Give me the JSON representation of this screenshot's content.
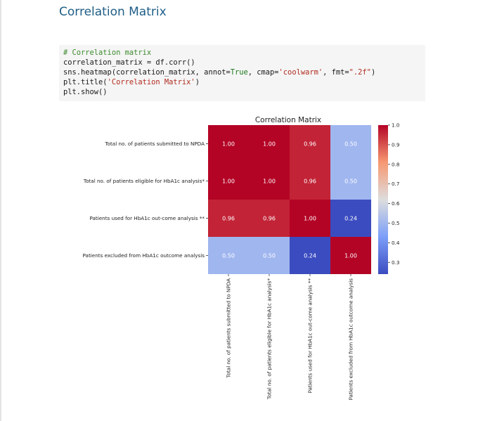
{
  "notebook": {
    "heading": "Correlation Matrix"
  },
  "code": {
    "lines": [
      [
        {
          "t": "# Correlation matrix",
          "c": "comment"
        }
      ],
      [
        {
          "t": "correlation_matrix = df.corr()",
          "c": "norm"
        }
      ],
      [
        {
          "t": "sns.heatmap(correlation_matrix, annot=",
          "c": "norm"
        },
        {
          "t": "True",
          "c": "const"
        },
        {
          "t": ", cmap=",
          "c": "norm"
        },
        {
          "t": "'coolwarm'",
          "c": "str"
        },
        {
          "t": ", fmt=",
          "c": "norm"
        },
        {
          "t": "\".2f\"",
          "c": "str"
        },
        {
          "t": ")",
          "c": "norm"
        }
      ],
      [
        {
          "t": "plt.title(",
          "c": "norm"
        },
        {
          "t": "'Correlation Matrix'",
          "c": "str"
        },
        {
          "t": ")",
          "c": "norm"
        }
      ],
      [
        {
          "t": "plt.show()",
          "c": "norm"
        }
      ]
    ]
  },
  "colors": {
    "code_comment": "#3c8a2e",
    "code_string": "#b02a1e",
    "code_const": "#1e7a1e",
    "heading": "#1f5e86"
  },
  "chart_data": {
    "type": "heatmap",
    "title": "Correlation Matrix",
    "row_labels": [
      "Total no. of patients submitted to NPDA",
      "Total no. of patients eligible for HbA1c analysis*",
      "Patients used for HbA1c out-come analysis **",
      "Patients excluded from HbA1c outcome analysis"
    ],
    "col_labels": [
      "Total no. of patients submitted to NPDA",
      "Total no. of patients eligible for HbA1c analysis*",
      "Patients used for HbA1c out-come analysis **",
      "Patients excluded from HbA1c outcome analysis"
    ],
    "values": [
      [
        1.0,
        1.0,
        0.96,
        0.5
      ],
      [
        1.0,
        1.0,
        0.96,
        0.5
      ],
      [
        0.96,
        0.96,
        1.0,
        0.24
      ],
      [
        0.5,
        0.5,
        0.24,
        1.0
      ]
    ],
    "annotations": [
      [
        "1.00",
        "1.00",
        "0.96",
        "0.50"
      ],
      [
        "1.00",
        "1.00",
        "0.96",
        "0.50"
      ],
      [
        "0.96",
        "0.96",
        "1.00",
        "0.24"
      ],
      [
        "0.50",
        "0.50",
        "0.24",
        "1.00"
      ]
    ],
    "colormap": "coolwarm",
    "vmin": 0.24,
    "vmax": 1.0,
    "colorbar_ticks": [
      "1.0",
      "0.9",
      "0.8",
      "0.7",
      "0.6",
      "0.5",
      "0.4",
      "0.3"
    ],
    "colorbar_tick_values": [
      1.0,
      0.9,
      0.8,
      0.7,
      0.6,
      0.5,
      0.4,
      0.3
    ]
  }
}
